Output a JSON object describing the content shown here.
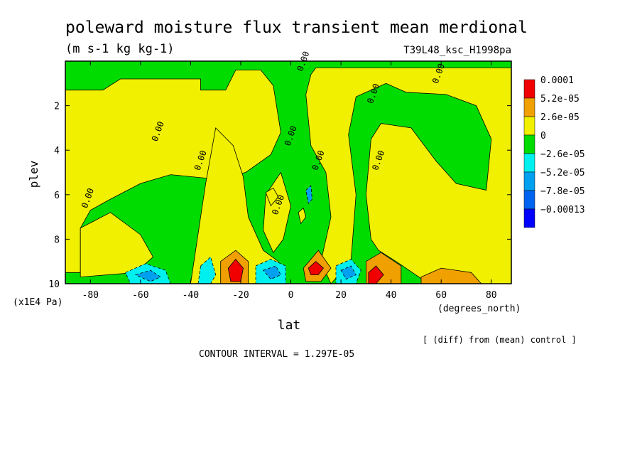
{
  "chart_data": {
    "type": "heatmap",
    "title": "poleward moisture flux transient mean merdional",
    "units": "(m s-1 kg kg-1)",
    "run_label": "T39L48_ksc_H1998pa",
    "xlabel": "lat",
    "x_units": "(degrees_north)",
    "ylabel": "plev",
    "y_units": "(x1E4 Pa)",
    "xlim": [
      -90,
      88
    ],
    "ylim": [
      10,
      0
    ],
    "x_ticks": [
      "-80",
      "-60",
      "-40",
      "-20",
      "0",
      "20",
      "40",
      "60",
      "80"
    ],
    "y_ticks": [
      "2",
      "4",
      "6",
      "8",
      "10"
    ],
    "contour_interval_text": "CONTOUR INTERVAL = 1.297E-05",
    "comparison_note": "[ (diff) from (mean) control ]",
    "contour_label": "0.00",
    "legend": {
      "placement": "right",
      "entries": [
        {
          "label": "0.0001",
          "color": "#f00000"
        },
        {
          "label": "5.2e-05",
          "color": "#f0a000"
        },
        {
          "label": "2.6e-05",
          "color": "#f0f000"
        },
        {
          "label": "0",
          "color": "#00dc00"
        },
        {
          "label": "−2.6e-05",
          "color": "#00f0f0"
        },
        {
          "label": "−5.2e-05",
          "color": "#00a0f0"
        },
        {
          "label": "−7.8e-05",
          "color": "#0064f0"
        },
        {
          "label": "−0.00013",
          "color": "#0000ff"
        }
      ]
    },
    "regions": [
      {
        "level": "0",
        "color": "#00dc00",
        "poly": [
          [
            -90,
            0
          ],
          [
            88,
            0
          ],
          [
            88,
            10
          ],
          [
            -90,
            10
          ]
        ]
      },
      {
        "level": "2.6e-05",
        "color": "#f0f000",
        "poly": [
          [
            -68,
            0.8
          ],
          [
            -36,
            0.8
          ],
          [
            -36,
            1.3
          ],
          [
            -26,
            1.3
          ],
          [
            -22,
            0.4
          ],
          [
            -12,
            0.4
          ],
          [
            -7,
            1.1
          ],
          [
            -4,
            3.2
          ],
          [
            -8,
            4.2
          ],
          [
            -18,
            5.0
          ],
          [
            -30,
            5.3
          ],
          [
            -48,
            5.1
          ],
          [
            -60,
            5.5
          ],
          [
            -72,
            6.2
          ],
          [
            -80,
            6.7
          ],
          [
            -84,
            7.5
          ],
          [
            -84,
            9.5
          ],
          [
            -90,
            9.5
          ],
          [
            -90,
            1.3
          ],
          [
            -75,
            1.3
          ]
        ]
      },
      {
        "level": "2.6e-05",
        "color": "#f0f000",
        "poly": [
          [
            -30,
            3.0
          ],
          [
            -23,
            3.8
          ],
          [
            -19,
            5.2
          ],
          [
            -17,
            7.0
          ],
          [
            -11,
            8.5
          ],
          [
            -5,
            9.0
          ],
          [
            -5,
            10
          ],
          [
            -40,
            10
          ],
          [
            -36,
            7.0
          ],
          [
            -34,
            5.5
          ]
        ]
      },
      {
        "level": "2.6e-05",
        "color": "#f0f000",
        "poly": [
          [
            -84,
            7.5
          ],
          [
            -72,
            6.8
          ],
          [
            -60,
            7.8
          ],
          [
            -55,
            8.8
          ],
          [
            -62,
            9.5
          ],
          [
            -84,
            9.7
          ]
        ]
      },
      {
        "level": "2.6e-05",
        "color": "#f0f000",
        "poly": [
          [
            10,
            0.3
          ],
          [
            38,
            0.3
          ],
          [
            60,
            0.3
          ],
          [
            88,
            0.3
          ],
          [
            88,
            10
          ],
          [
            55,
            10
          ],
          [
            42,
            9.0
          ],
          [
            35,
            8.5
          ],
          [
            32,
            8.0
          ],
          [
            30,
            6.0
          ],
          [
            32,
            3.5
          ],
          [
            36,
            2.8
          ],
          [
            48,
            3.0
          ],
          [
            58,
            4.5
          ],
          [
            66,
            5.5
          ],
          [
            78,
            5.8
          ],
          [
            80,
            3.5
          ],
          [
            74,
            2.0
          ],
          [
            62,
            1.5
          ],
          [
            46,
            1.4
          ],
          [
            38,
            1.0
          ],
          [
            26,
            1.6
          ],
          [
            23,
            3.3
          ],
          [
            26,
            6.0
          ],
          [
            24,
            9.0
          ],
          [
            16,
            10
          ],
          [
            12,
            9.0
          ],
          [
            16,
            7.0
          ],
          [
            14,
            5.0
          ],
          [
            8,
            3.8
          ],
          [
            6,
            1.5
          ],
          [
            8,
            0.6
          ]
        ]
      },
      {
        "level": "2.6e-05",
        "color": "#f0f000",
        "poly": [
          [
            -10,
            6.0
          ],
          [
            -4,
            5.0
          ],
          [
            0,
            6.5
          ],
          [
            -3,
            8.0
          ],
          [
            -7,
            8.6
          ],
          [
            -11,
            7.6
          ]
        ]
      },
      {
        "level": "5.2e-05",
        "color": "#f0a000",
        "poly": [
          [
            -28,
            9.0
          ],
          [
            -22,
            8.5
          ],
          [
            -17,
            9.0
          ],
          [
            -17,
            10
          ],
          [
            -28,
            10
          ]
        ]
      },
      {
        "level": "5.2e-05",
        "color": "#f0a000",
        "poly": [
          [
            5,
            9.3
          ],
          [
            11,
            8.5
          ],
          [
            16,
            9.3
          ],
          [
            12,
            9.9
          ],
          [
            6,
            9.9
          ]
        ]
      },
      {
        "level": "5.2e-05",
        "color": "#f0a000",
        "poly": [
          [
            30,
            9.0
          ],
          [
            36,
            8.6
          ],
          [
            44,
            9.2
          ],
          [
            44,
            10
          ],
          [
            30,
            10
          ]
        ]
      },
      {
        "level": "5.2e-05",
        "color": "#f0a000",
        "poly": [
          [
            52,
            9.7
          ],
          [
            60,
            9.3
          ],
          [
            72,
            9.5
          ],
          [
            76,
            10
          ],
          [
            52,
            10
          ]
        ]
      },
      {
        "level": "0.0001",
        "color": "#f00000",
        "poly": [
          [
            -25,
            9.3
          ],
          [
            -22,
            8.9
          ],
          [
            -19,
            9.3
          ],
          [
            -20,
            9.9
          ],
          [
            -24,
            9.9
          ]
        ]
      },
      {
        "level": "0.0001",
        "color": "#f00000",
        "poly": [
          [
            7,
            9.3
          ],
          [
            10,
            9.0
          ],
          [
            13,
            9.3
          ],
          [
            11,
            9.6
          ],
          [
            8,
            9.6
          ]
        ]
      },
      {
        "level": "0.0001",
        "color": "#f00000",
        "poly": [
          [
            31,
            9.5
          ],
          [
            34,
            9.2
          ],
          [
            37,
            9.6
          ],
          [
            34,
            10
          ],
          [
            31,
            10
          ]
        ]
      },
      {
        "level": "-2.6e-05",
        "color": "#00f0f0",
        "poly": [
          [
            -66,
            9.5
          ],
          [
            -58,
            9.1
          ],
          [
            -50,
            9.4
          ],
          [
            -48,
            10
          ],
          [
            -64,
            10
          ]
        ]
      },
      {
        "level": "-2.6e-05",
        "color": "#00f0f0",
        "poly": [
          [
            -36,
            9.2
          ],
          [
            -32,
            8.8
          ],
          [
            -30,
            9.6
          ],
          [
            -32,
            10
          ],
          [
            -37,
            10
          ]
        ]
      },
      {
        "level": "-2.6e-05",
        "color": "#00f0f0",
        "poly": [
          [
            -14,
            9.2
          ],
          [
            -8,
            8.9
          ],
          [
            -2,
            9.2
          ],
          [
            -2,
            10
          ],
          [
            -14,
            10
          ]
        ]
      },
      {
        "level": "-2.6e-05",
        "color": "#00f0f0",
        "poly": [
          [
            18,
            9.2
          ],
          [
            24,
            8.9
          ],
          [
            28,
            9.4
          ],
          [
            26,
            10
          ],
          [
            18,
            10
          ]
        ]
      },
      {
        "level": "-5.2e-05",
        "color": "#00a0f0",
        "poly": [
          [
            -62,
            9.6
          ],
          [
            -56,
            9.4
          ],
          [
            -52,
            9.7
          ],
          [
            -56,
            9.9
          ]
        ]
      },
      {
        "level": "-5.2e-05",
        "color": "#00a0f0",
        "poly": [
          [
            -11,
            9.4
          ],
          [
            -6,
            9.2
          ],
          [
            -4,
            9.6
          ],
          [
            -8,
            9.8
          ]
        ]
      },
      {
        "level": "-5.2e-05",
        "color": "#00a0f0",
        "poly": [
          [
            20,
            9.4
          ],
          [
            24,
            9.2
          ],
          [
            26,
            9.6
          ],
          [
            22,
            9.8
          ]
        ]
      },
      {
        "level": "-5.2e-05",
        "color": "#00a0f0",
        "poly": [
          [
            6,
            5.8
          ],
          [
            8,
            5.6
          ],
          [
            8.5,
            6.2
          ],
          [
            7,
            6.4
          ]
        ]
      },
      {
        "level": "2.6e-05",
        "color": "#f0f000",
        "poly": [
          [
            -10,
            5.9
          ],
          [
            -7,
            5.7
          ],
          [
            -5,
            6.1
          ],
          [
            -8,
            6.5
          ]
        ]
      },
      {
        "level": "2.6e-05",
        "color": "#f0f000",
        "poly": [
          [
            3,
            6.8
          ],
          [
            5,
            6.6
          ],
          [
            6,
            7.0
          ],
          [
            4,
            7.3
          ]
        ]
      }
    ],
    "contour_labels": [
      {
        "x": 6,
        "y": 0.05
      },
      {
        "x": 60,
        "y": 0.6
      },
      {
        "x": -52,
        "y": 3.2
      },
      {
        "x": -35,
        "y": 4.5
      },
      {
        "x": -80,
        "y": 6.2
      },
      {
        "x": 1,
        "y": 3.4
      },
      {
        "x": 12,
        "y": 4.5
      },
      {
        "x": 36,
        "y": 4.5
      },
      {
        "x": 34,
        "y": 1.5
      },
      {
        "x": -4,
        "y": 6.5
      }
    ]
  }
}
